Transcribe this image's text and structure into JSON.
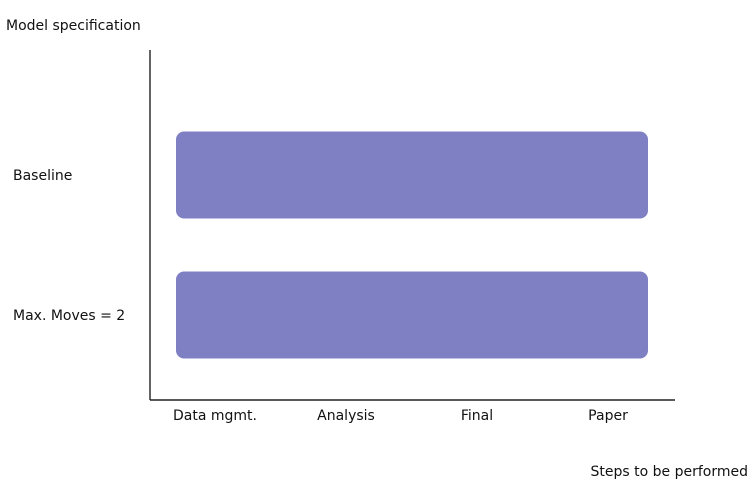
{
  "chart_data": {
    "type": "bar",
    "orientation": "horizontal",
    "ylabel": "Model specification",
    "xlabel": "Steps to be performed",
    "x_categories": [
      "Data mgmt.",
      "Analysis",
      "Final",
      "Paper"
    ],
    "categories": [
      "Baseline",
      "Max. Moves = 2"
    ],
    "series": [
      {
        "values": [
          [
            "Data mgmt.",
            "Paper"
          ],
          [
            "Data mgmt.",
            "Paper"
          ]
        ]
      }
    ],
    "bar_color": "#7f80c4",
    "grid": false,
    "legend": "none"
  }
}
